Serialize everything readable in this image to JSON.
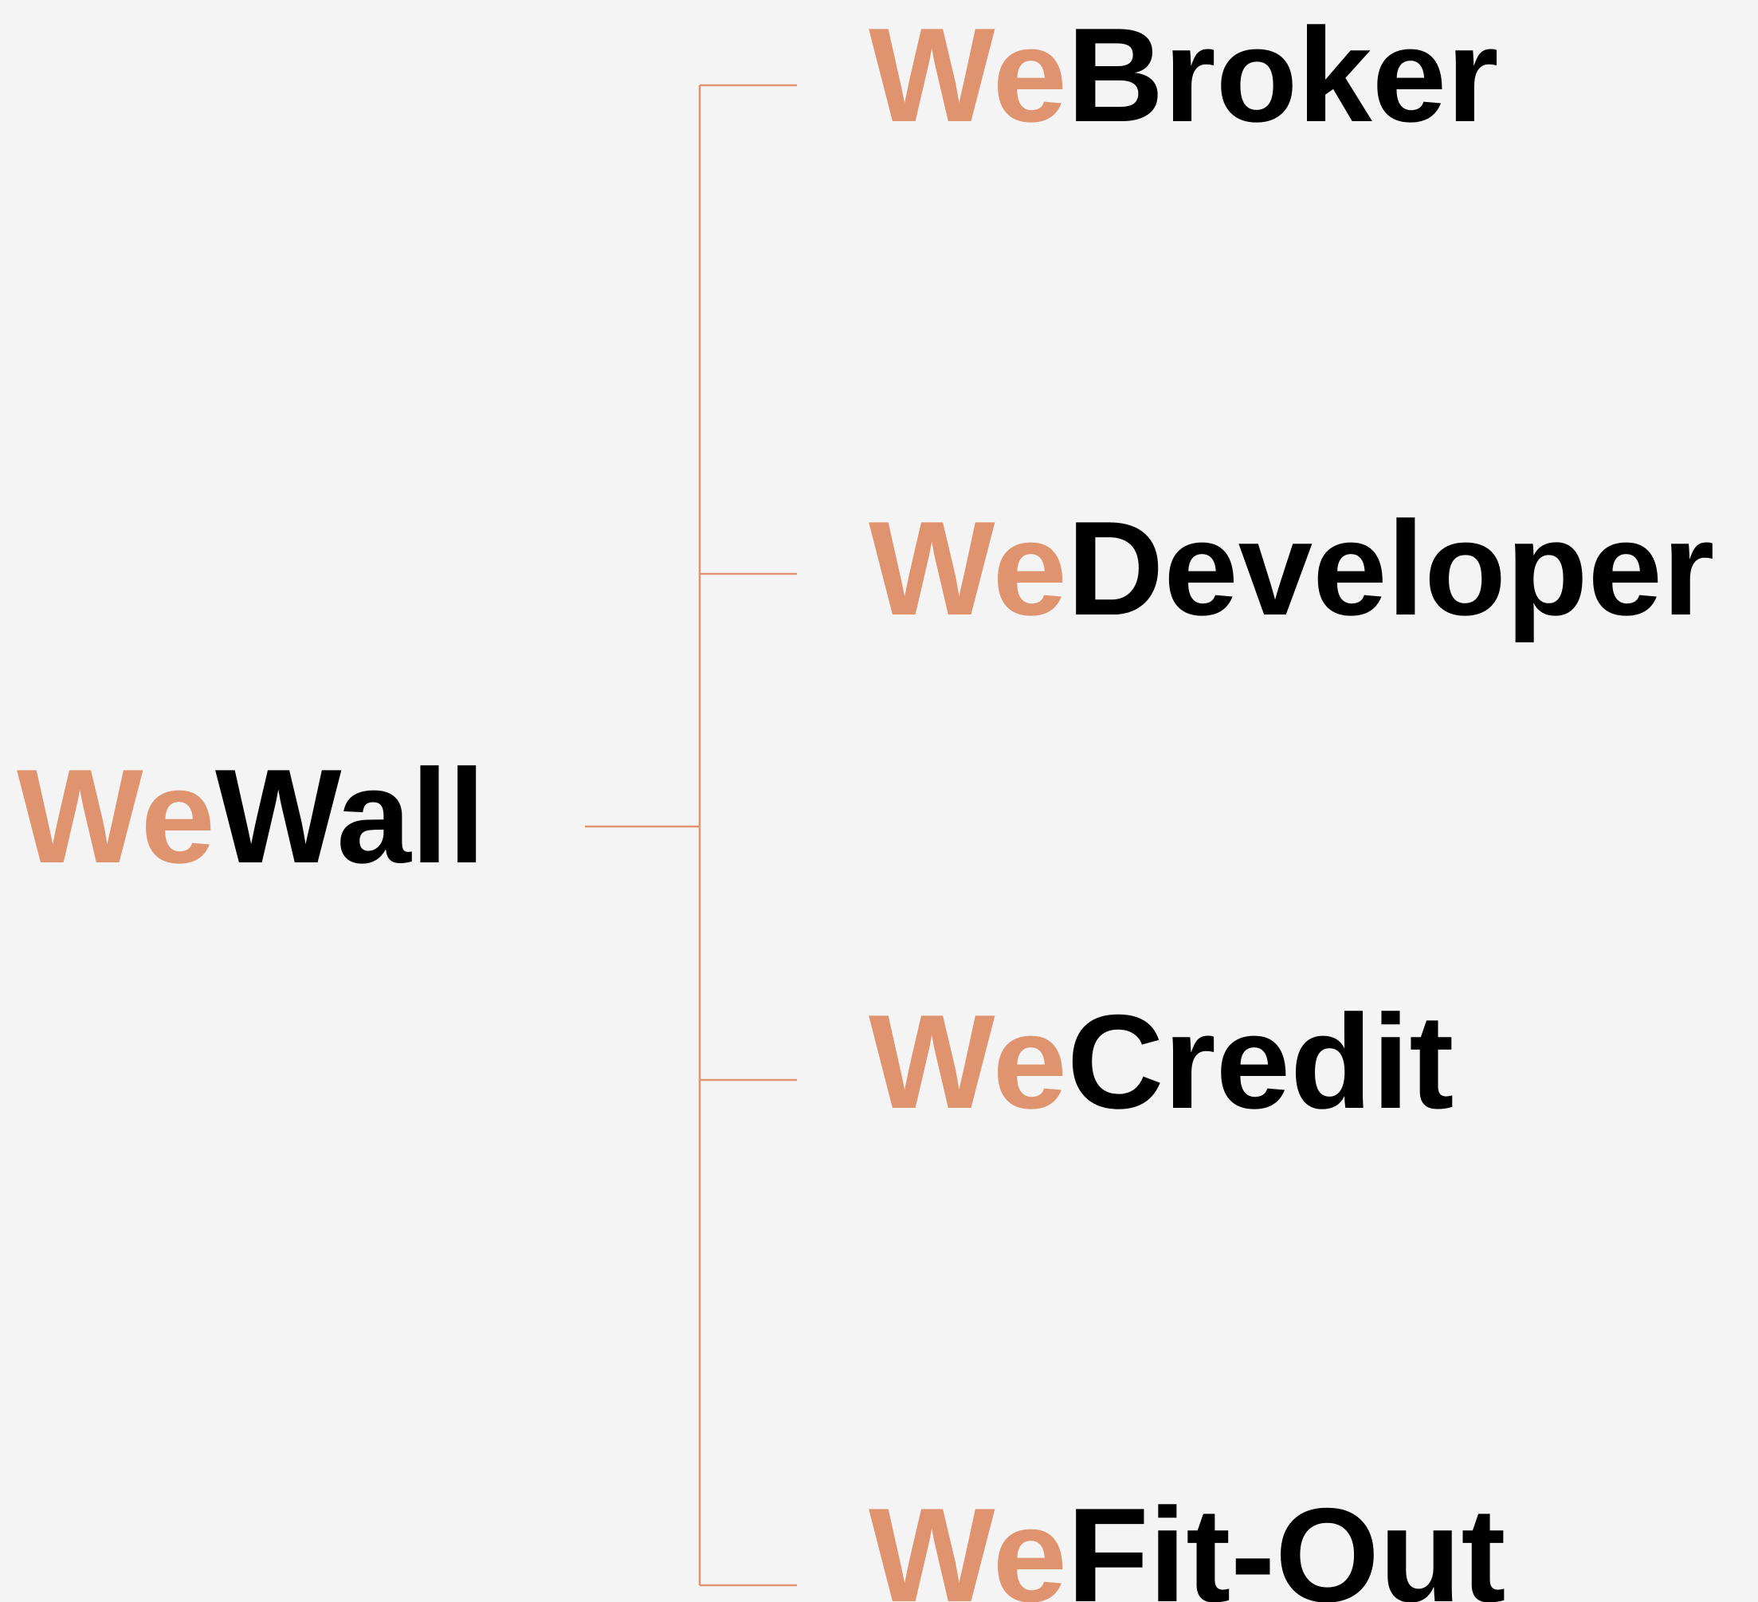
{
  "root": {
    "prefix": "We",
    "name": "Wall"
  },
  "children": [
    {
      "prefix": "We",
      "name": "Broker"
    },
    {
      "prefix": "We",
      "name": "Developer"
    },
    {
      "prefix": "We",
      "name": "Credit"
    },
    {
      "prefix": "We",
      "name": "Fit-Out"
    }
  ]
}
